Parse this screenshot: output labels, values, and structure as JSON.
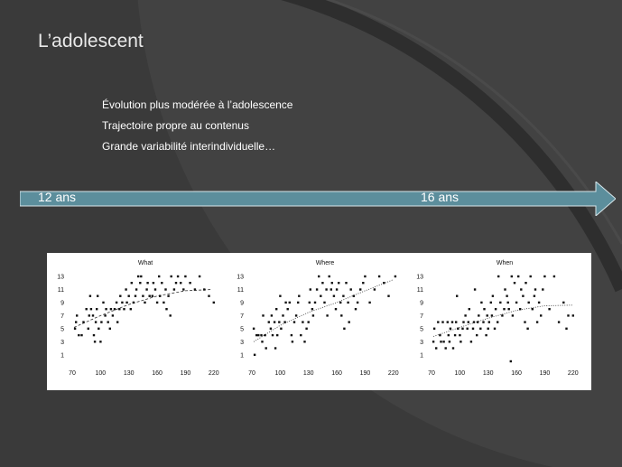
{
  "slide": {
    "title": "L’adolescent",
    "bullets": [
      "Évolution plus modérée à l’adolescence",
      "Trajectoire propre au contenus",
      "Grande variabilité interindividuelle…"
    ],
    "timeline": {
      "start_label": "12 ans",
      "end_label": "16 ans",
      "color": "#5c8e9c"
    },
    "colors": {
      "background": "#3a3a3a",
      "text": "#ffffff",
      "title": "#e8e8e8"
    }
  },
  "chart_data": [
    {
      "type": "scatter",
      "title": "What",
      "xlim": [
        70,
        225
      ],
      "ylim": [
        0,
        13
      ],
      "xticks": [
        70,
        100,
        130,
        160,
        190,
        220
      ],
      "yticks": [
        1,
        3,
        5,
        7,
        9,
        11,
        13
      ],
      "trend": {
        "style": "dashed",
        "x": [
          72,
          100,
          130,
          160,
          190,
          218
        ],
        "y": [
          5.2,
          7.0,
          8.7,
          10.0,
          10.8,
          11.0
        ]
      },
      "points": [
        [
          73,
          5
        ],
        [
          74,
          6
        ],
        [
          75,
          7
        ],
        [
          77,
          4
        ],
        [
          80,
          4
        ],
        [
          82,
          6
        ],
        [
          85,
          8
        ],
        [
          87,
          5
        ],
        [
          88,
          7
        ],
        [
          89,
          10
        ],
        [
          90,
          8
        ],
        [
          92,
          7
        ],
        [
          93,
          4
        ],
        [
          94,
          3
        ],
        [
          95,
          6
        ],
        [
          96,
          8
        ],
        [
          97,
          10
        ],
        [
          98,
          5
        ],
        [
          100,
          3
        ],
        [
          101,
          6
        ],
        [
          103,
          9
        ],
        [
          105,
          7
        ],
        [
          106,
          8
        ],
        [
          108,
          6
        ],
        [
          110,
          5
        ],
        [
          111,
          8
        ],
        [
          113,
          7
        ],
        [
          115,
          8
        ],
        [
          117,
          9
        ],
        [
          118,
          6
        ],
        [
          120,
          8
        ],
        [
          121,
          10
        ],
        [
          123,
          9
        ],
        [
          125,
          8
        ],
        [
          127,
          11
        ],
        [
          128,
          9
        ],
        [
          130,
          10
        ],
        [
          132,
          8
        ],
        [
          133,
          12
        ],
        [
          135,
          9
        ],
        [
          137,
          10
        ],
        [
          138,
          11
        ],
        [
          140,
          13
        ],
        [
          142,
          12
        ],
        [
          143,
          13
        ],
        [
          145,
          10
        ],
        [
          147,
          9
        ],
        [
          149,
          11
        ],
        [
          150,
          12
        ],
        [
          152,
          10
        ],
        [
          155,
          10
        ],
        [
          156,
          12
        ],
        [
          158,
          11
        ],
        [
          160,
          9
        ],
        [
          162,
          13
        ],
        [
          163,
          10
        ],
        [
          165,
          12
        ],
        [
          167,
          9
        ],
        [
          169,
          11
        ],
        [
          170,
          8
        ],
        [
          172,
          10
        ],
        [
          174,
          7
        ],
        [
          175,
          13
        ],
        [
          178,
          11
        ],
        [
          180,
          12
        ],
        [
          182,
          13
        ],
        [
          185,
          12
        ],
        [
          188,
          11
        ],
        [
          190,
          13
        ],
        [
          195,
          12
        ],
        [
          200,
          11
        ],
        [
          205,
          13
        ],
        [
          210,
          11
        ],
        [
          215,
          10
        ],
        [
          220,
          9
        ]
      ]
    },
    {
      "type": "scatter",
      "title": "Where",
      "xlim": [
        70,
        225
      ],
      "ylim": [
        0,
        13
      ],
      "xticks": [
        70,
        100,
        130,
        160,
        190,
        220
      ],
      "yticks": [
        1,
        3,
        5,
        7,
        9,
        11,
        13
      ],
      "trend": {
        "style": "dotted",
        "x": [
          72,
          100,
          130,
          160,
          190,
          220
        ],
        "y": [
          3.0,
          5.5,
          7.5,
          9.0,
          10.8,
          12.5
        ]
      },
      "points": [
        [
          72,
          5
        ],
        [
          73,
          1
        ],
        [
          75,
          4
        ],
        [
          77,
          4
        ],
        [
          80,
          4
        ],
        [
          81,
          3
        ],
        [
          82,
          7
        ],
        [
          84,
          4
        ],
        [
          85,
          2
        ],
        [
          88,
          6
        ],
        [
          90,
          5
        ],
        [
          91,
          7
        ],
        [
          92,
          4
        ],
        [
          94,
          6
        ],
        [
          95,
          2
        ],
        [
          96,
          8
        ],
        [
          97,
          4
        ],
        [
          99,
          6
        ],
        [
          100,
          10
        ],
        [
          101,
          5
        ],
        [
          103,
          7
        ],
        [
          105,
          6
        ],
        [
          106,
          9
        ],
        [
          108,
          8
        ],
        [
          110,
          9
        ],
        [
          112,
          4
        ],
        [
          113,
          3
        ],
        [
          115,
          6
        ],
        [
          117,
          7
        ],
        [
          119,
          9
        ],
        [
          120,
          10
        ],
        [
          122,
          4
        ],
        [
          124,
          6
        ],
        [
          126,
          3
        ],
        [
          128,
          5
        ],
        [
          130,
          6
        ],
        [
          131,
          9
        ],
        [
          132,
          11
        ],
        [
          134,
          8
        ],
        [
          135,
          7
        ],
        [
          137,
          9
        ],
        [
          139,
          11
        ],
        [
          141,
          13
        ],
        [
          143,
          10
        ],
        [
          145,
          12
        ],
        [
          147,
          9
        ],
        [
          149,
          11
        ],
        [
          150,
          7
        ],
        [
          152,
          13
        ],
        [
          154,
          11
        ],
        [
          155,
          12
        ],
        [
          157,
          10
        ],
        [
          159,
          8
        ],
        [
          160,
          11
        ],
        [
          162,
          12
        ],
        [
          164,
          9
        ],
        [
          165,
          7
        ],
        [
          167,
          10
        ],
        [
          168,
          5
        ],
        [
          170,
          12
        ],
        [
          172,
          9
        ],
        [
          173,
          6
        ],
        [
          175,
          11
        ],
        [
          178,
          10
        ],
        [
          180,
          8
        ],
        [
          182,
          9
        ],
        [
          185,
          11
        ],
        [
          188,
          12
        ],
        [
          190,
          13
        ],
        [
          195,
          9
        ],
        [
          200,
          11
        ],
        [
          205,
          13
        ],
        [
          210,
          12
        ],
        [
          215,
          10
        ],
        [
          222,
          13
        ]
      ]
    },
    {
      "type": "scatter",
      "title": "When",
      "xlim": [
        70,
        225
      ],
      "ylim": [
        0,
        13
      ],
      "xticks": [
        70,
        100,
        130,
        160,
        190,
        220
      ],
      "yticks": [
        1,
        3,
        5,
        7,
        9,
        11,
        13
      ],
      "trend": {
        "style": "dotted",
        "x": [
          72,
          100,
          130,
          160,
          190,
          220
        ],
        "y": [
          3.8,
          5.2,
          6.6,
          7.8,
          8.5,
          8.6
        ]
      },
      "points": [
        [
          72,
          3
        ],
        [
          73,
          5
        ],
        [
          75,
          2
        ],
        [
          77,
          6
        ],
        [
          79,
          4
        ],
        [
          80,
          3
        ],
        [
          82,
          6
        ],
        [
          83,
          3
        ],
        [
          85,
          2
        ],
        [
          87,
          6
        ],
        [
          88,
          4
        ],
        [
          89,
          3
        ],
        [
          90,
          5
        ],
        [
          92,
          6
        ],
        [
          93,
          2
        ],
        [
          95,
          4
        ],
        [
          96,
          6
        ],
        [
          97,
          10
        ],
        [
          98,
          5
        ],
        [
          100,
          4
        ],
        [
          101,
          3
        ],
        [
          103,
          5
        ],
        [
          104,
          6
        ],
        [
          106,
          7
        ],
        [
          108,
          5
        ],
        [
          109,
          6
        ],
        [
          110,
          8
        ],
        [
          112,
          3
        ],
        [
          114,
          5
        ],
        [
          115,
          6
        ],
        [
          116,
          11
        ],
        [
          118,
          4
        ],
        [
          119,
          6
        ],
        [
          120,
          7
        ],
        [
          122,
          5
        ],
        [
          123,
          9
        ],
        [
          125,
          6
        ],
        [
          126,
          8
        ],
        [
          128,
          4
        ],
        [
          129,
          7
        ],
        [
          130,
          5
        ],
        [
          131,
          6
        ],
        [
          133,
          9
        ],
        [
          134,
          7
        ],
        [
          135,
          10
        ],
        [
          137,
          5
        ],
        [
          138,
          8
        ],
        [
          140,
          6
        ],
        [
          141,
          13
        ],
        [
          143,
          9
        ],
        [
          145,
          7
        ],
        [
          147,
          8
        ],
        [
          148,
          11
        ],
        [
          150,
          10
        ],
        [
          151,
          9
        ],
        [
          152,
          8
        ],
        [
          154,
          0
        ],
        [
          155,
          13
        ],
        [
          156,
          7
        ],
        [
          158,
          12
        ],
        [
          160,
          9
        ],
        [
          162,
          13
        ],
        [
          164,
          8
        ],
        [
          165,
          11
        ],
        [
          167,
          10
        ],
        [
          169,
          6
        ],
        [
          170,
          12
        ],
        [
          172,
          5
        ],
        [
          173,
          9
        ],
        [
          175,
          13
        ],
        [
          177,
          8
        ],
        [
          179,
          10
        ],
        [
          180,
          11
        ],
        [
          182,
          6
        ],
        [
          184,
          9
        ],
        [
          186,
          7
        ],
        [
          188,
          11
        ],
        [
          190,
          13
        ],
        [
          195,
          8
        ],
        [
          200,
          13
        ],
        [
          205,
          6
        ],
        [
          210,
          9
        ],
        [
          213,
          5
        ],
        [
          215,
          7
        ],
        [
          220,
          7
        ]
      ]
    }
  ]
}
